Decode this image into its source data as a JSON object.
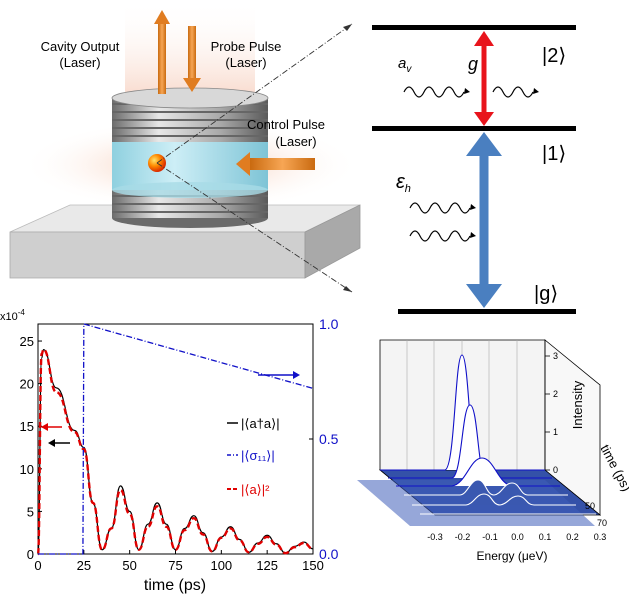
{
  "schematic": {
    "cavity_output": [
      "Cavity Output",
      "(Laser)"
    ],
    "probe_pulse": [
      "Probe Pulse",
      "(Laser)"
    ],
    "control_pulse": [
      "Control Pulse",
      "(Laser)"
    ]
  },
  "levels": {
    "state_2": "|2⟩",
    "state_1": "|1⟩",
    "state_g": "|g⟩",
    "coupling": "g",
    "cavity_mode": "a",
    "cavity_mode_sub": "v",
    "drive": "ε",
    "drive_sub": "h",
    "colors": {
      "upper_transition": "#e8141c",
      "lower_transition": "#4a7fc0"
    }
  },
  "chart_data": [
    {
      "type": "line",
      "xlabel": "time (ps)",
      "y_multiplier": "x10",
      "y_multiplier_exp": "-4",
      "xlim": [
        0,
        150
      ],
      "ylim_left": [
        0,
        27
      ],
      "ylim_right": [
        0,
        1.0
      ],
      "x_ticks": [
        "0",
        "25",
        "50",
        "75",
        "100",
        "125",
        "150"
      ],
      "y_ticks_left": [
        "0",
        "5",
        "10",
        "15",
        "20",
        "25"
      ],
      "y_ticks_right": [
        "0.0",
        "0.5",
        "1.0"
      ],
      "legend": [
        {
          "label": "|⟨a†a⟩|",
          "color": "#000000"
        },
        {
          "label": "|⟨σ₁₁⟩|",
          "color": "#1010c8"
        },
        {
          "label": "|⟨a⟩|²",
          "color": "#e00000"
        }
      ],
      "series_photon_number": {
        "x": [
          0,
          2,
          3,
          10,
          20,
          25,
          30,
          35,
          40,
          45,
          50,
          55,
          60,
          65,
          70,
          75,
          80,
          85,
          90,
          95,
          100,
          105,
          110,
          115,
          120,
          125,
          130,
          135,
          140,
          145,
          150
        ],
        "y": [
          0,
          23,
          24,
          19.5,
          14.5,
          12.5,
          6,
          0.5,
          3,
          8,
          5,
          0.5,
          3.5,
          6,
          3.5,
          0.5,
          3,
          4.5,
          2.5,
          0.3,
          2,
          3.2,
          1.7,
          0.2,
          1.3,
          2.2,
          1.2,
          0.1,
          0.9,
          1.4,
          0.6
        ]
      },
      "series_sigma11": {
        "x": [
          0,
          24.5,
          25,
          150
        ],
        "y": [
          0,
          0,
          1.0,
          0.72
        ]
      },
      "series_field_sq": {
        "x": [
          0,
          2,
          3,
          10,
          20,
          25,
          30,
          35,
          40,
          45,
          50,
          55,
          60,
          65,
          70,
          75,
          80,
          85,
          90,
          95,
          100,
          105,
          110,
          115,
          120,
          125,
          130,
          135,
          140,
          145,
          150
        ],
        "y": [
          0,
          23.5,
          24,
          19,
          14.3,
          12.3,
          6,
          0.5,
          3,
          7.5,
          4.7,
          0.5,
          3.2,
          5.6,
          3.2,
          0.5,
          2.8,
          4.2,
          2.3,
          0.3,
          1.9,
          3,
          1.6,
          0.2,
          1.2,
          2,
          1.1,
          0.1,
          0.8,
          1.3,
          0.6
        ]
      }
    },
    {
      "type": "area",
      "xlabel": "Energy (μeV)",
      "ylabel": "Intensity",
      "zlabel": "time (ps)",
      "x_ticks": [
        "-0.3",
        "-0.2",
        "-0.1",
        "0.0",
        "0.1",
        "0.2",
        "0.3"
      ],
      "intensity_ticks": [
        "0",
        "1",
        "2",
        "3"
      ],
      "time_ticks": [
        "50",
        "70"
      ]
    }
  ]
}
